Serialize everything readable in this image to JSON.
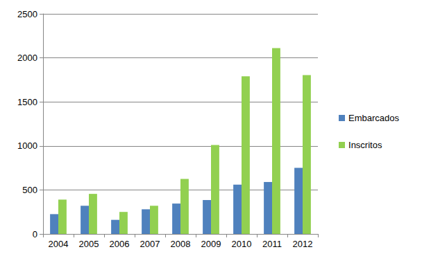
{
  "chart_data": {
    "type": "bar",
    "categories": [
      "2004",
      "2005",
      "2006",
      "2007",
      "2008",
      "2009",
      "2010",
      "2011",
      "2012"
    ],
    "series": [
      {
        "name": "Embarcados",
        "color": "#4f81bd",
        "values": [
          225,
          320,
          160,
          280,
          345,
          385,
          560,
          590,
          750
        ]
      },
      {
        "name": "Inscritos",
        "color": "#92d050",
        "values": [
          390,
          455,
          250,
          320,
          625,
          1010,
          1790,
          2110,
          1805
        ]
      }
    ],
    "ylim": [
      0,
      2500
    ],
    "yticks": [
      0,
      500,
      1000,
      1500,
      2000,
      2500
    ],
    "grid": true,
    "legend": "right"
  }
}
